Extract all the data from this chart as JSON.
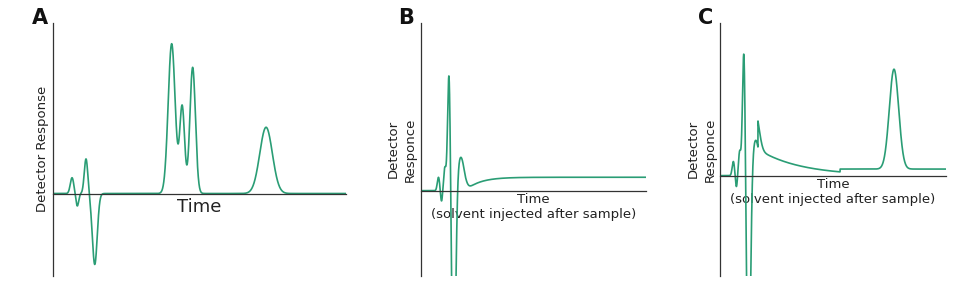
{
  "line_color": "#2a9d75",
  "background_color": "#ffffff",
  "label_A": "A",
  "label_B": "B",
  "label_C": "C",
  "ylabel_A": "Detector Response",
  "ylabel_BC": "Detector\nResponce",
  "xlabel_A": "Time",
  "xlabel_BC": "Time\n(solvent injected after sample)",
  "panel_label_fontsize": 15,
  "axis_label_fontsize": 9.5,
  "xlabel_A_fontsize": 13
}
